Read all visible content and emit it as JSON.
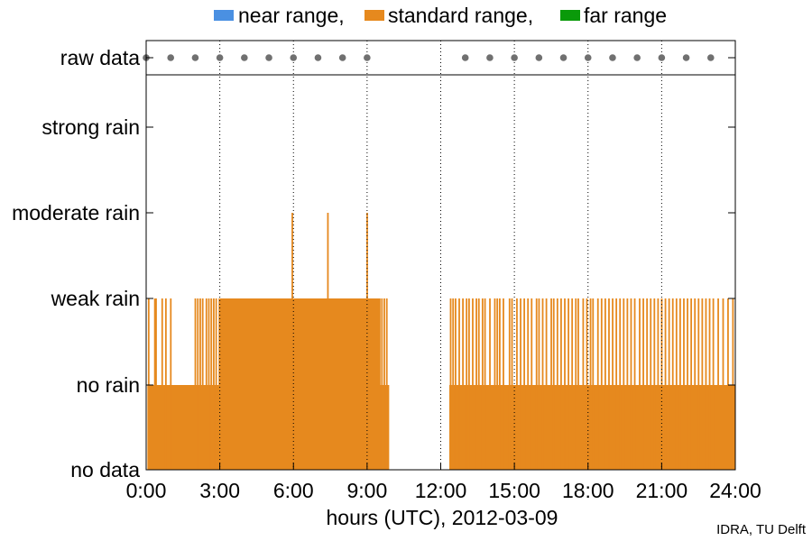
{
  "chart_data": {
    "type": "bar",
    "title": "",
    "xlabel": "hours (UTC), 2012-03-09",
    "credit": "IDRA, TU Delft",
    "xlim": [
      0,
      24
    ],
    "x_ticks": [
      "0:00",
      "3:00",
      "6:00",
      "9:00",
      "12:00",
      "15:00",
      "18:00",
      "21:00",
      "24:00"
    ],
    "y_categories": [
      "no data",
      "no rain",
      "weak rain",
      "moderate rain",
      "strong rain",
      "raw data"
    ],
    "legend": [
      {
        "name": "near range,",
        "color": "#4a90e2"
      },
      {
        "name": "standard range,",
        "color": "#e6891e"
      },
      {
        "name": "far range",
        "color": "#0a9a0a"
      }
    ],
    "raw_data_hours": [
      0,
      1,
      2,
      3,
      4,
      5,
      6,
      7,
      8,
      9,
      13,
      14,
      15,
      16,
      17,
      18,
      19,
      20,
      21,
      22,
      23
    ],
    "raw_data_color": "#707070",
    "series": [
      {
        "name": "standard range",
        "color": "#e6891e",
        "base_segments": [
          {
            "start": 0.05,
            "end": 9.9,
            "level": 1
          },
          {
            "start": 12.35,
            "end": 24.0,
            "level": 1
          }
        ],
        "weak_blocks": [
          {
            "start": 2.95,
            "end": 9.55,
            "level": 2
          }
        ],
        "weak_spikes": [
          0.1,
          0.35,
          0.4,
          0.65,
          0.8,
          1.0,
          2.0,
          2.1,
          2.2,
          2.3,
          2.45,
          2.55,
          2.65,
          2.75,
          2.85,
          9.6,
          9.7,
          9.8,
          12.4,
          12.5,
          12.6,
          12.75,
          12.9,
          13.05,
          13.15,
          13.3,
          13.45,
          13.55,
          13.7,
          13.8,
          14.0,
          14.2,
          14.3,
          14.4,
          14.55,
          14.8,
          14.9,
          15.1,
          15.25,
          15.4,
          15.55,
          15.7,
          15.9,
          16.0,
          16.15,
          16.3,
          16.5,
          16.6,
          16.75,
          16.9,
          17.05,
          17.2,
          17.35,
          17.5,
          17.6,
          17.8,
          17.95,
          18.1,
          18.2,
          18.4,
          18.55,
          18.7,
          18.85,
          19.0,
          19.15,
          19.3,
          19.45,
          19.6,
          19.75,
          19.9,
          20.1,
          20.25,
          20.4,
          20.55,
          20.7,
          20.85,
          21.0,
          21.15,
          21.3,
          21.45,
          21.6,
          21.75,
          21.9,
          22.05,
          22.2,
          22.35,
          22.5,
          22.65,
          22.8,
          22.95,
          23.1,
          23.3,
          23.5,
          23.7,
          23.9
        ],
        "moderate_spikes": [
          5.95,
          7.4,
          9.0
        ]
      }
    ],
    "grid": "vertical dotted"
  }
}
